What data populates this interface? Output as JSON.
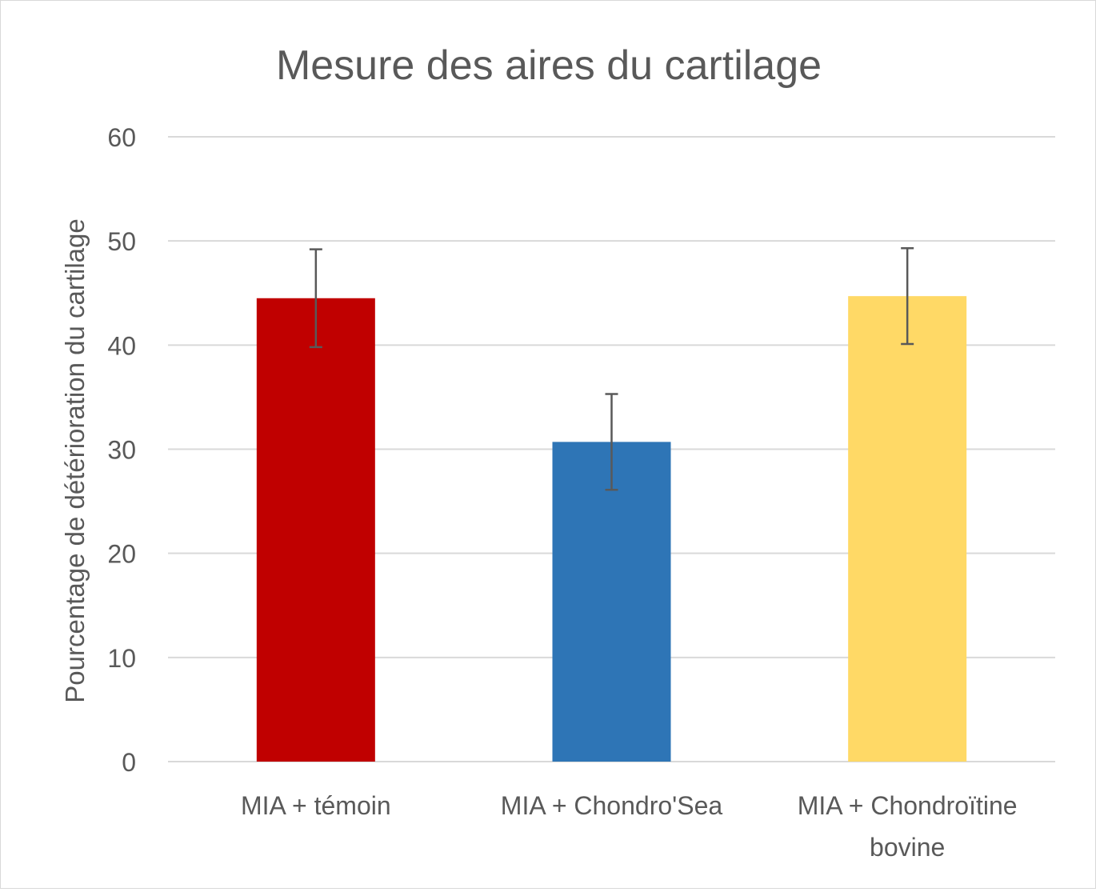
{
  "chart_data": {
    "type": "bar",
    "title": "Mesure des aires du cartilage",
    "xlabel": "",
    "ylabel": "Pourcentage de détérioration du cartilage",
    "ylim": [
      0,
      60
    ],
    "yticks": [
      0,
      10,
      20,
      30,
      40,
      50,
      60
    ],
    "grid": true,
    "legend": "none",
    "categories": [
      [
        "MIA + témoin"
      ],
      [
        "MIA + Chondro'Sea"
      ],
      [
        "MIA + Chondroïtine",
        "bovine"
      ]
    ],
    "values": [
      44.5,
      30.7,
      44.7
    ],
    "error": [
      4.7,
      4.6,
      4.6
    ],
    "colors": [
      "#c00000",
      "#2e75b6",
      "#ffd966"
    ],
    "error_color": "#595959",
    "grid_color": "#d9d9d9",
    "text_color": "#595959"
  }
}
